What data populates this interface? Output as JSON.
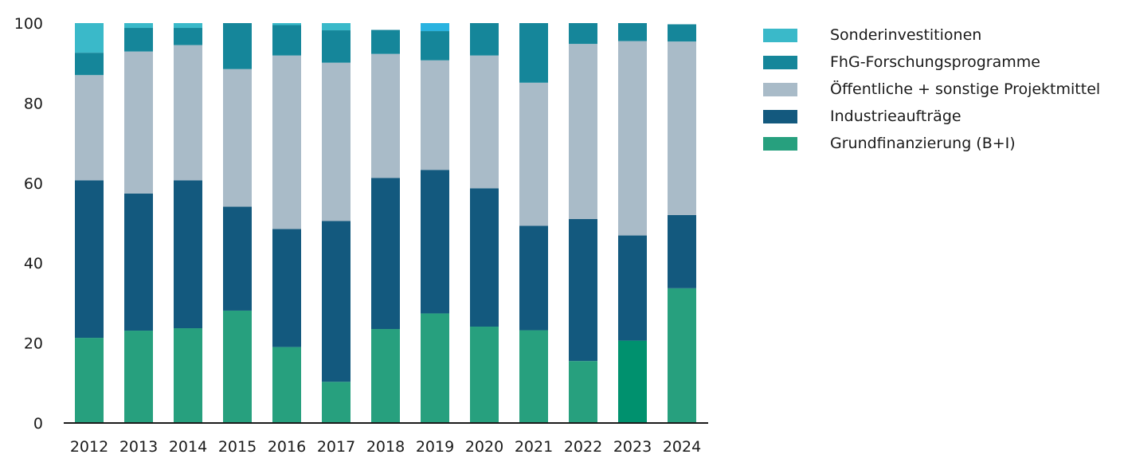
{
  "chart_data": {
    "type": "bar",
    "stacked": true,
    "categories": [
      "2012",
      "2013",
      "2014",
      "2015",
      "2016",
      "2017",
      "2018",
      "2019",
      "2020",
      "2021",
      "2022",
      "2023",
      "2024"
    ],
    "series": [
      {
        "name": "Grundfinanzierung (B+I)",
        "color": "#27a07e",
        "values": [
          21.3,
          23.1,
          23.7,
          28.1,
          19.0,
          10.3,
          23.5,
          27.4,
          24.1,
          23.2,
          15.5,
          20.6,
          33.7
        ]
      },
      {
        "name": "Industrieaufträge",
        "color": "#13597e",
        "values": [
          39.4,
          34.3,
          37.0,
          26.0,
          29.5,
          40.2,
          37.8,
          35.9,
          34.6,
          26.1,
          35.5,
          26.3,
          18.3
        ]
      },
      {
        "name": "Öffentliche + sonstige Projektmittel",
        "color": "#a9bbc8",
        "values": [
          26.3,
          35.5,
          33.8,
          34.4,
          43.4,
          39.6,
          31.0,
          27.4,
          33.2,
          35.8,
          43.8,
          48.6,
          43.4
        ]
      },
      {
        "name": "FhG-Forschungsprogramme",
        "color": "#15869a",
        "values": [
          5.6,
          5.9,
          4.3,
          11.5,
          7.6,
          8.1,
          6.0,
          7.3,
          8.1,
          14.9,
          5.2,
          4.5,
          4.3
        ]
      },
      {
        "name": "Sonderinvestitionen",
        "color": "#3ab9c9",
        "values": [
          7.4,
          1.2,
          1.2,
          0.0,
          0.5,
          1.8,
          0.0,
          2.0,
          0.0,
          0.0,
          0.0,
          0.0,
          0.0
        ]
      }
    ],
    "bar_overrides": [
      {
        "category": "2019",
        "series": "Sonderinvestitionen",
        "color": "#2ab3e0"
      },
      {
        "category": "2023",
        "series": "Grundfinanzierung (B+I)",
        "color": "#00916e"
      }
    ],
    "ylim": [
      0,
      100
    ],
    "yticks": [
      0,
      20,
      40,
      60,
      80,
      100
    ],
    "grid": false,
    "legend_placement": "top-right"
  },
  "legend_order": [
    "Sonderinvestitionen",
    "FhG-Forschungsprogramme",
    "Öffentliche + sonstige Projektmittel",
    "Industrieaufträge",
    "Grundfinanzierung (B+I)"
  ]
}
